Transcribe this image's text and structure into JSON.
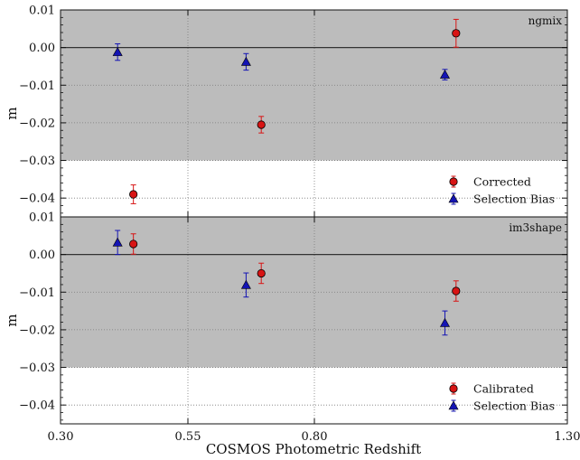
{
  "chart_data": [
    {
      "type": "scatter",
      "panel_label": "ngmix",
      "ylabel": "m",
      "xlim": [
        0.3,
        1.3
      ],
      "ylim": [
        -0.045,
        0.01
      ],
      "xticks": [
        "0.30",
        "0.55",
        "0.80",
        "1.30"
      ],
      "yticks": [
        "0.01",
        "0.00",
        "−0.01",
        "−0.02",
        "−0.03",
        "−0.04"
      ],
      "shaded_band": [
        -0.03,
        0.01
      ],
      "reference_line": 0.0,
      "vertical_gridlines_at": [
        0.55,
        0.8
      ],
      "legend_position": "bottom-right",
      "grid": "dotted",
      "series": [
        {
          "name": "Corrected",
          "marker": "circle",
          "color": "#d81414",
          "points": [
            {
              "x": 0.443,
              "y": -0.039,
              "err": 0.0025
            },
            {
              "x": 0.695,
              "y": -0.0205,
              "err": 0.0022
            },
            {
              "x": 1.08,
              "y": 0.0038,
              "err": 0.0037
            }
          ]
        },
        {
          "name": "Selection Bias",
          "marker": "triangle",
          "color": "#1414b4",
          "points": [
            {
              "x": 0.412,
              "y": -0.0012,
              "err": 0.0022
            },
            {
              "x": 0.665,
              "y": -0.0038,
              "err": 0.0022
            },
            {
              "x": 1.058,
              "y": -0.0072,
              "err": 0.0014
            }
          ]
        }
      ]
    },
    {
      "type": "scatter",
      "panel_label": "im3shape",
      "ylabel": "m",
      "xlabel": "COSMOS Photometric Redshift",
      "xlim": [
        0.3,
        1.3
      ],
      "ylim": [
        -0.045,
        0.01
      ],
      "xticks": [
        "0.30",
        "0.55",
        "0.80",
        "1.30"
      ],
      "yticks": [
        "0.01",
        "0.00",
        "−0.01",
        "−0.02",
        "−0.03",
        "−0.04"
      ],
      "shaded_band": [
        -0.03,
        0.01
      ],
      "reference_line": 0.0,
      "vertical_gridlines_at": [
        0.55,
        0.8
      ],
      "legend_position": "bottom-right",
      "grid": "dotted",
      "series": [
        {
          "name": "Calibrated",
          "marker": "circle",
          "color": "#d81414",
          "points": [
            {
              "x": 0.443,
              "y": 0.0028,
              "err": 0.0027
            },
            {
              "x": 0.695,
              "y": -0.005,
              "err": 0.0027
            },
            {
              "x": 1.08,
              "y": -0.0097,
              "err": 0.0027
            }
          ]
        },
        {
          "name": "Selection Bias",
          "marker": "triangle",
          "color": "#1414b4",
          "points": [
            {
              "x": 0.412,
              "y": 0.0032,
              "err": 0.0032
            },
            {
              "x": 0.665,
              "y": -0.0081,
              "err": 0.0032
            },
            {
              "x": 1.058,
              "y": -0.0182,
              "err": 0.0032
            }
          ]
        }
      ]
    }
  ]
}
